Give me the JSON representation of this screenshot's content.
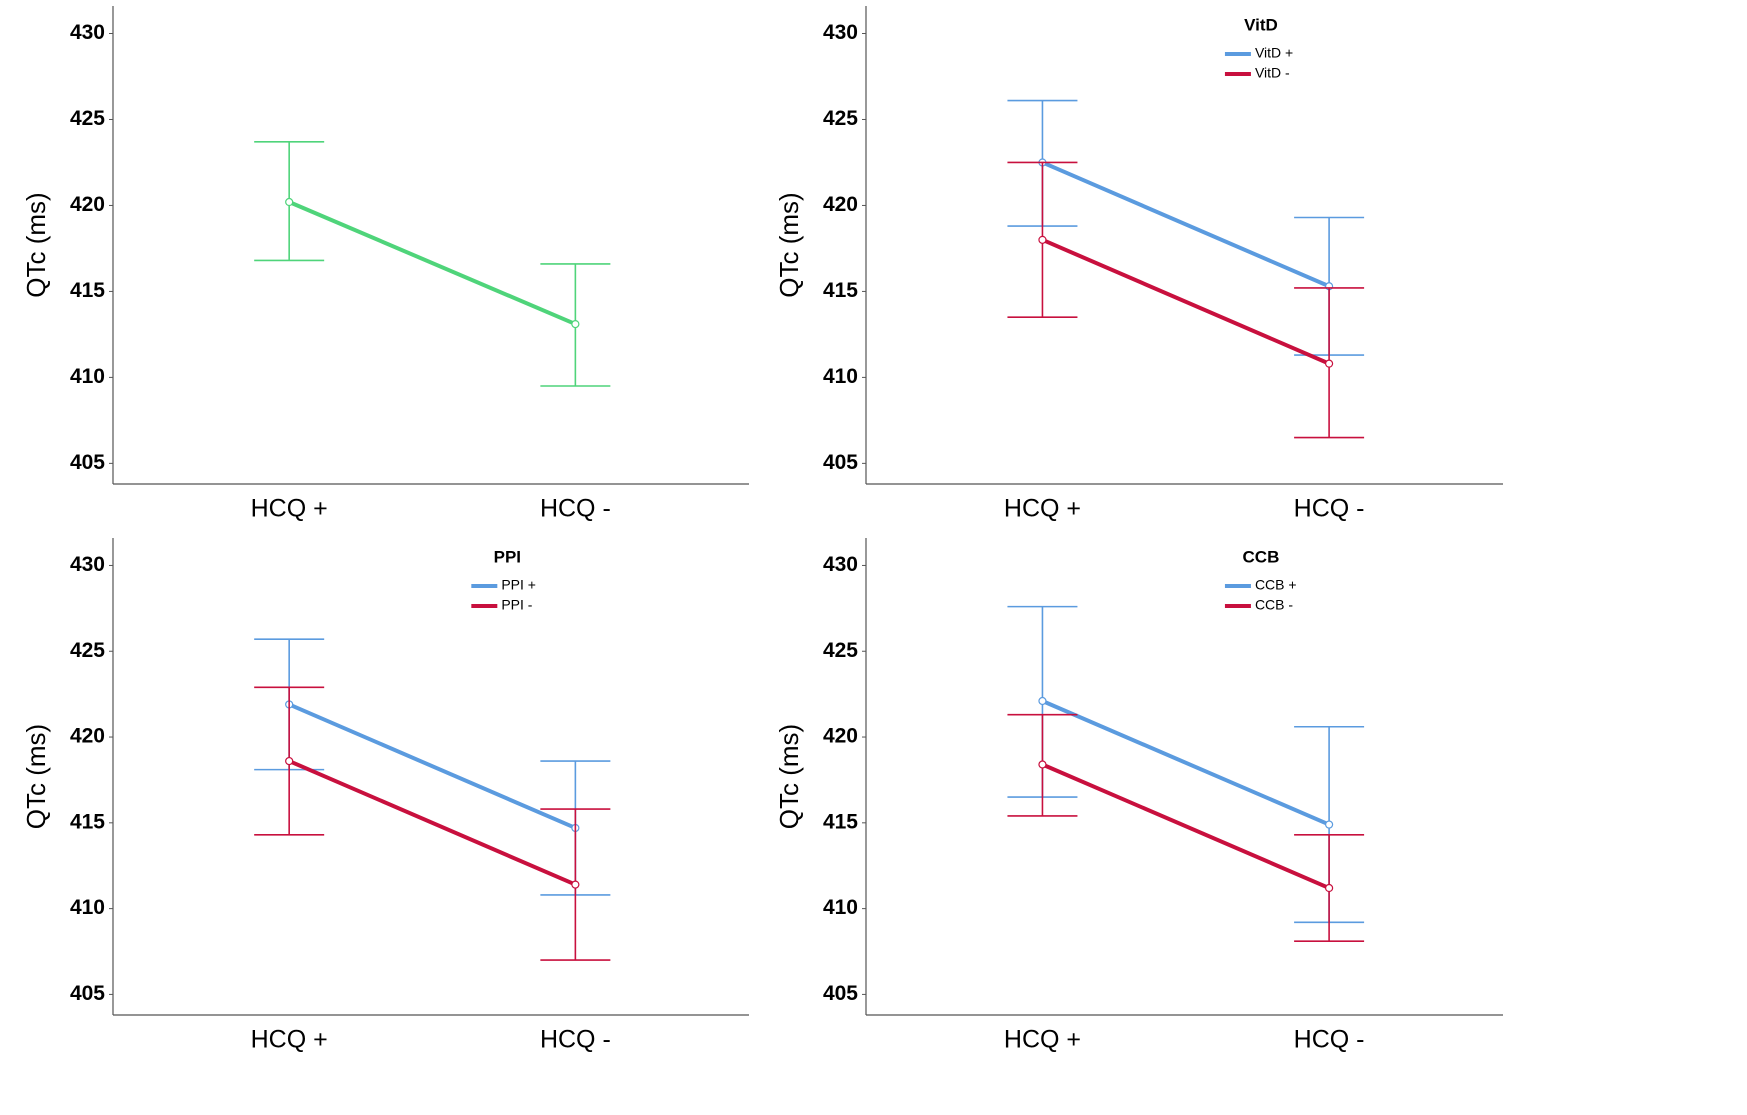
{
  "chart_data": [
    {
      "type": "line",
      "ylabel": "QTc (ms)",
      "categories": [
        "HCQ +",
        "HCQ -"
      ],
      "ylim": [
        403.8,
        431.6
      ],
      "yticks": [
        405,
        410,
        415,
        420,
        425,
        430
      ],
      "series": [
        {
          "color": "#4fd47a",
          "values": [
            420.2,
            413.1
          ],
          "ci_low": [
            416.8,
            409.5
          ],
          "ci_high": [
            423.7,
            416.6
          ]
        }
      ]
    },
    {
      "type": "line",
      "ylabel": "QTc (ms)",
      "categories": [
        "HCQ +",
        "HCQ -"
      ],
      "legend_title": "VitD",
      "ylim": [
        403.8,
        431.6
      ],
      "yticks": [
        405,
        410,
        415,
        420,
        425,
        430
      ],
      "series": [
        {
          "name": "VitD +",
          "color": "#5b9bdf",
          "values": [
            422.5,
            415.3
          ],
          "ci_low": [
            418.8,
            411.3
          ],
          "ci_high": [
            426.1,
            419.3
          ]
        },
        {
          "name": "VitD -",
          "color": "#c8103e",
          "values": [
            418.0,
            410.8
          ],
          "ci_low": [
            413.5,
            406.5
          ],
          "ci_high": [
            422.5,
            415.2
          ]
        }
      ]
    },
    {
      "type": "line",
      "ylabel": "QTc (ms)",
      "categories": [
        "HCQ +",
        "HCQ -"
      ],
      "legend_title": "PPI",
      "ylim": [
        403.8,
        431.6
      ],
      "yticks": [
        405,
        410,
        415,
        420,
        425,
        430
      ],
      "series": [
        {
          "name": "PPI +",
          "color": "#5b9bdf",
          "values": [
            421.9,
            414.7
          ],
          "ci_low": [
            418.1,
            410.8
          ],
          "ci_high": [
            425.7,
            418.6
          ]
        },
        {
          "name": "PPI -",
          "color": "#c8103e",
          "values": [
            418.6,
            411.4
          ],
          "ci_low": [
            414.3,
            407.0
          ],
          "ci_high": [
            422.9,
            415.8
          ]
        }
      ]
    },
    {
      "type": "line",
      "ylabel": "QTc (ms)",
      "categories": [
        "HCQ +",
        "HCQ -"
      ],
      "legend_title": "CCB",
      "ylim": [
        403.8,
        431.6
      ],
      "yticks": [
        405,
        410,
        415,
        420,
        425,
        430
      ],
      "series": [
        {
          "name": "CCB +",
          "color": "#5b9bdf",
          "values": [
            422.1,
            414.9
          ],
          "ci_low": [
            416.5,
            409.2
          ],
          "ci_high": [
            427.6,
            420.6
          ]
        },
        {
          "name": "CCB -",
          "color": "#c8103e",
          "values": [
            418.4,
            411.2
          ],
          "ci_low": [
            415.4,
            408.1
          ],
          "ci_high": [
            421.3,
            414.3
          ]
        }
      ]
    }
  ]
}
